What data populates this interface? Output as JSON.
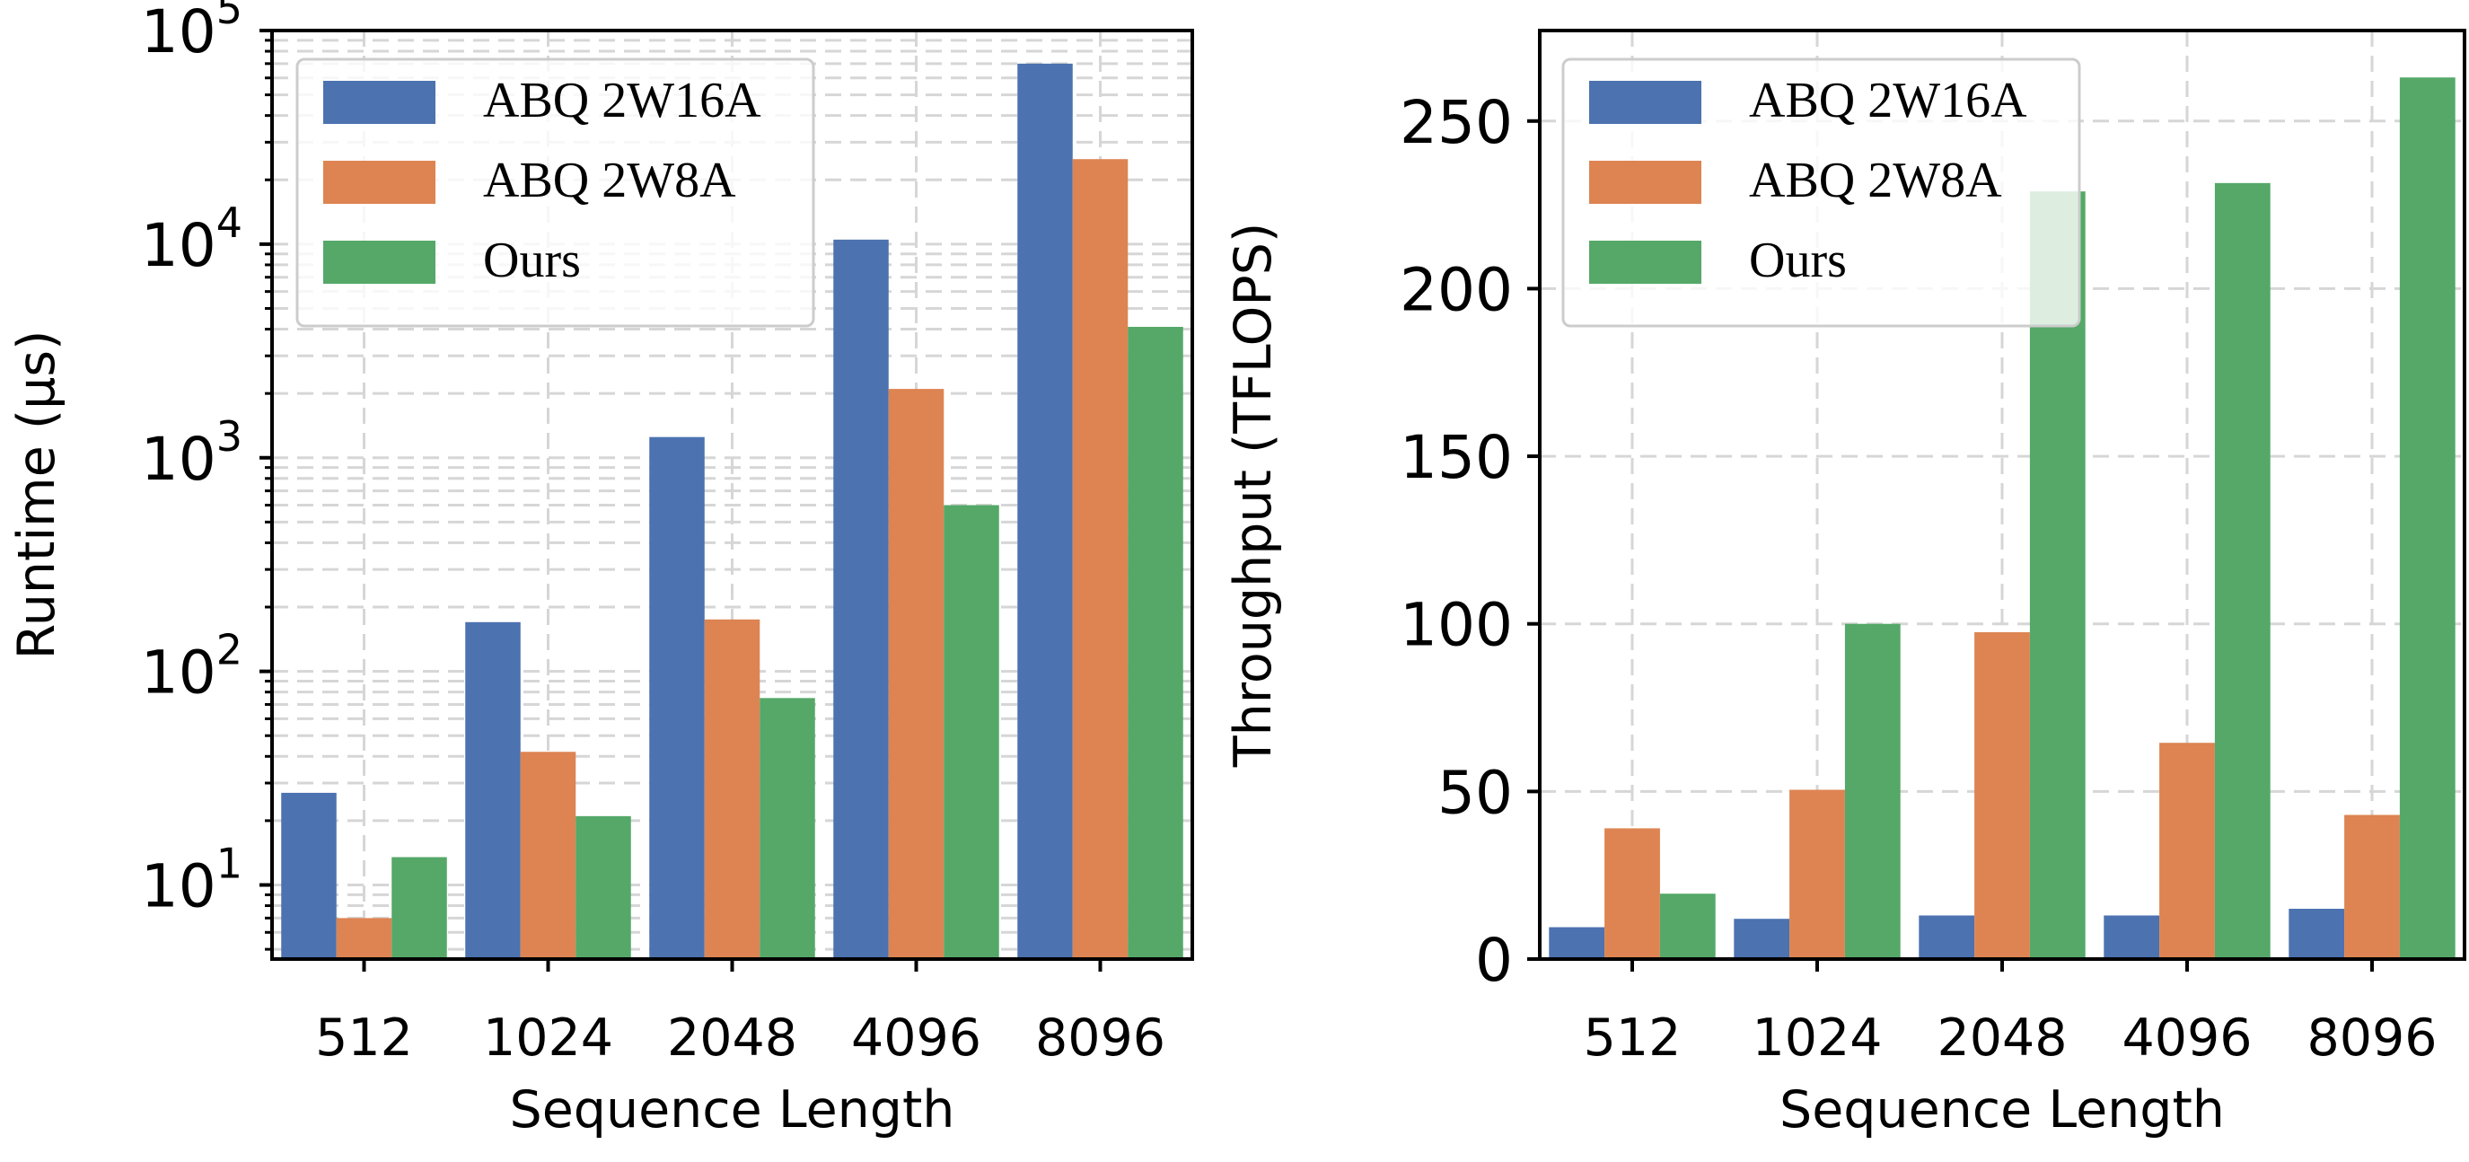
{
  "chart_data": [
    {
      "type": "bar",
      "xlabel": "Sequence Length",
      "ylabel": "Runtime (μs)",
      "yscale": "log",
      "ylim": [
        4.5,
        100000
      ],
      "yticks": [
        10,
        100,
        1000,
        10000,
        100000
      ],
      "ytick_labels": [
        {
          "base": "10",
          "exp": "1"
        },
        {
          "base": "10",
          "exp": "2"
        },
        {
          "base": "10",
          "exp": "3"
        },
        {
          "base": "10",
          "exp": "4"
        },
        {
          "base": "10",
          "exp": "5"
        }
      ],
      "categories": [
        "512",
        "1024",
        "2048",
        "4096",
        "8096"
      ],
      "series": [
        {
          "name": "ABQ 2W16A",
          "color": "#4c72b0",
          "values": [
            27,
            170,
            1250,
            10500,
            70000
          ]
        },
        {
          "name": "ABQ 2W8A",
          "color": "#dd8452",
          "values": [
            7,
            42,
            175,
            2100,
            25000
          ]
        },
        {
          "name": "Ours",
          "color": "#55a868",
          "values": [
            13.5,
            21,
            75,
            600,
            4100
          ]
        }
      ],
      "grid": true,
      "legend": "top-left"
    },
    {
      "type": "bar",
      "xlabel": "Sequence Length",
      "ylabel": "Throughput (TFLOPS)",
      "yscale": "linear",
      "ylim": [
        0,
        277
      ],
      "yticks": [
        0,
        50,
        100,
        150,
        200,
        250
      ],
      "ytick_labels": [
        "0",
        "50",
        "100",
        "150",
        "200",
        "250"
      ],
      "categories": [
        "512",
        "1024",
        "2048",
        "4096",
        "8096"
      ],
      "series": [
        {
          "name": "ABQ 2W16A",
          "color": "#4c72b0",
          "values": [
            9.5,
            12,
            13,
            13,
            15
          ]
        },
        {
          "name": "ABQ 2W8A",
          "color": "#dd8452",
          "values": [
            39,
            50.5,
            97.5,
            64.5,
            43
          ]
        },
        {
          "name": "Ours",
          "color": "#55a868",
          "values": [
            19.5,
            100,
            229,
            231.5,
            263
          ]
        }
      ],
      "grid": true,
      "legend": "top-left"
    }
  ]
}
